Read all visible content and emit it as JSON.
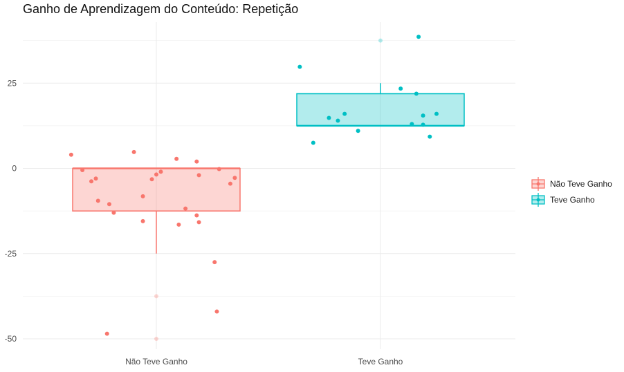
{
  "chart_data": {
    "type": "box",
    "title": "Ganho de Aprendizagem do Conteúdo: Repetição",
    "xlabel": "",
    "ylabel": "",
    "categories": [
      "Não Teve Ganho",
      "Teve Ganho"
    ],
    "yticks": [
      -50,
      -25,
      0,
      25
    ],
    "ylim": [
      -52,
      42
    ],
    "grid": true,
    "legend_position": "right",
    "colors": {
      "Não Teve Ganho": "#F8766D",
      "Teve Ganho": "#00BFC4"
    },
    "series": [
      {
        "name": "Não Teve Ganho",
        "box": {
          "min": -25,
          "q1": -12.5,
          "median": 0,
          "q3": 0,
          "max": 0
        },
        "outliers": [
          -37.5,
          -50
        ],
        "points": [
          {
            "x": -0.38,
            "y": 4
          },
          {
            "x": -0.33,
            "y": -0.5
          },
          {
            "x": -0.29,
            "y": -3.8
          },
          {
            "x": -0.27,
            "y": -3
          },
          {
            "x": -0.26,
            "y": -9.5
          },
          {
            "x": -0.21,
            "y": -10.5
          },
          {
            "x": -0.19,
            "y": -13
          },
          {
            "x": -0.1,
            "y": 4.8
          },
          {
            "x": -0.06,
            "y": -8.2
          },
          {
            "x": -0.06,
            "y": -15.5
          },
          {
            "x": -0.02,
            "y": -3.2
          },
          {
            "x": 0,
            "y": -1.8
          },
          {
            "x": 0.02,
            "y": -1
          },
          {
            "x": 0.09,
            "y": 2.8
          },
          {
            "x": 0.1,
            "y": -16.5
          },
          {
            "x": 0.13,
            "y": -11.8
          },
          {
            "x": 0.18,
            "y": 2
          },
          {
            "x": 0.19,
            "y": -2
          },
          {
            "x": 0.18,
            "y": -13.8
          },
          {
            "x": 0.19,
            "y": -15.8
          },
          {
            "x": 0.27,
            "y": -42
          },
          {
            "x": 0.26,
            "y": -27.5
          },
          {
            "x": 0.28,
            "y": -0.2
          },
          {
            "x": 0.33,
            "y": -4.5
          },
          {
            "x": 0.35,
            "y": -2.8
          },
          {
            "x": -0.22,
            "y": -48.5
          }
        ]
      },
      {
        "name": "Teve Ganho",
        "box": {
          "min": 12.5,
          "q1": 12.5,
          "median": 12.5,
          "q3": 21.9,
          "max": 25
        },
        "outliers": [
          37.5
        ],
        "points": [
          {
            "x": -0.36,
            "y": 29.8
          },
          {
            "x": -0.3,
            "y": 7.5
          },
          {
            "x": -0.23,
            "y": 14.8
          },
          {
            "x": -0.19,
            "y": 14
          },
          {
            "x": -0.16,
            "y": 16
          },
          {
            "x": -0.1,
            "y": 11
          },
          {
            "x": 0.09,
            "y": 23.4
          },
          {
            "x": 0.14,
            "y": 13
          },
          {
            "x": 0.16,
            "y": 21.9
          },
          {
            "x": 0.17,
            "y": 38.6
          },
          {
            "x": 0.19,
            "y": 15.5
          },
          {
            "x": 0.19,
            "y": 12.8
          },
          {
            "x": 0.22,
            "y": 9.3
          },
          {
            "x": 0.25,
            "y": 16
          }
        ]
      }
    ]
  }
}
